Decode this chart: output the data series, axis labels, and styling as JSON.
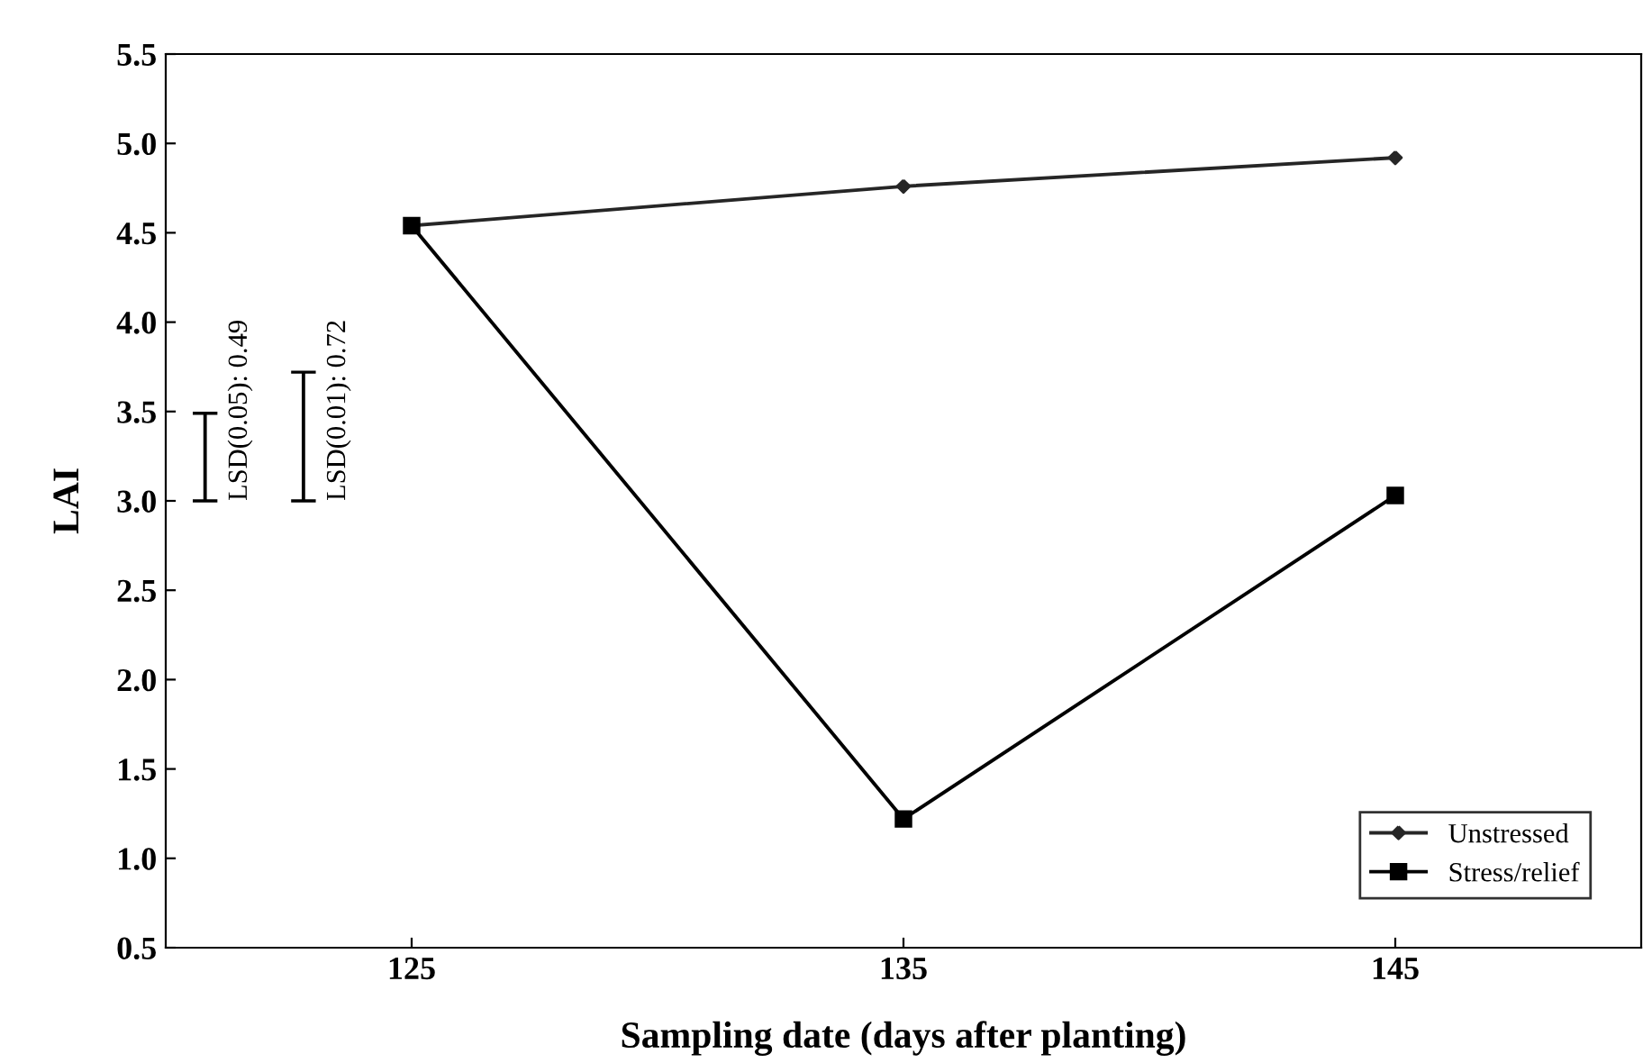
{
  "chart_data": {
    "type": "line",
    "xlabel": "Sampling date (days after planting)",
    "ylabel": "LAI",
    "xlim": [
      120,
      150
    ],
    "xticks": [
      125,
      135,
      145
    ],
    "ylim": [
      0.5,
      5.5
    ],
    "yticks": [
      {
        "value": 0.5,
        "label": "0.5"
      },
      {
        "value": 1.0,
        "label": "1.0"
      },
      {
        "value": 1.5,
        "label": "1.5"
      },
      {
        "value": 2.0,
        "label": "2.0"
      },
      {
        "value": 2.5,
        "label": "2.5"
      },
      {
        "value": 3.0,
        "label": "3.0"
      },
      {
        "value": 3.5,
        "label": "3.5"
      },
      {
        "value": 4.0,
        "label": "4.0"
      },
      {
        "value": 4.5,
        "label": "4.5"
      },
      {
        "value": 5.0,
        "label": "5.0"
      },
      {
        "value": 5.5,
        "label": "5.5"
      }
    ],
    "x": [
      125,
      135,
      145
    ],
    "grid": false,
    "legend": "bottom right",
    "line_style": "solid",
    "series": [
      {
        "name": "Unstressed",
        "color": "#262626",
        "marker": "diamond",
        "values": [
          4.54,
          4.76,
          4.92
        ]
      },
      {
        "name": "Stress/relief",
        "color": "#000000",
        "marker": "square",
        "values": [
          4.54,
          1.22,
          3.03
        ]
      },
      {
        "type": "bar",
        "color": "#000000",
        "x": [
          120.8
        ],
        "base": [
          3.0
        ],
        "values": [
          0.49
        ]
      },
      {
        "type": "bar",
        "color": "#000000",
        "x": [
          122.8
        ],
        "base": [
          3.0
        ],
        "values": [
          0.72
        ]
      }
    ],
    "annotations": [
      "LSD(0.05): 0.49",
      "LSD(0.01): 0.72"
    ]
  }
}
